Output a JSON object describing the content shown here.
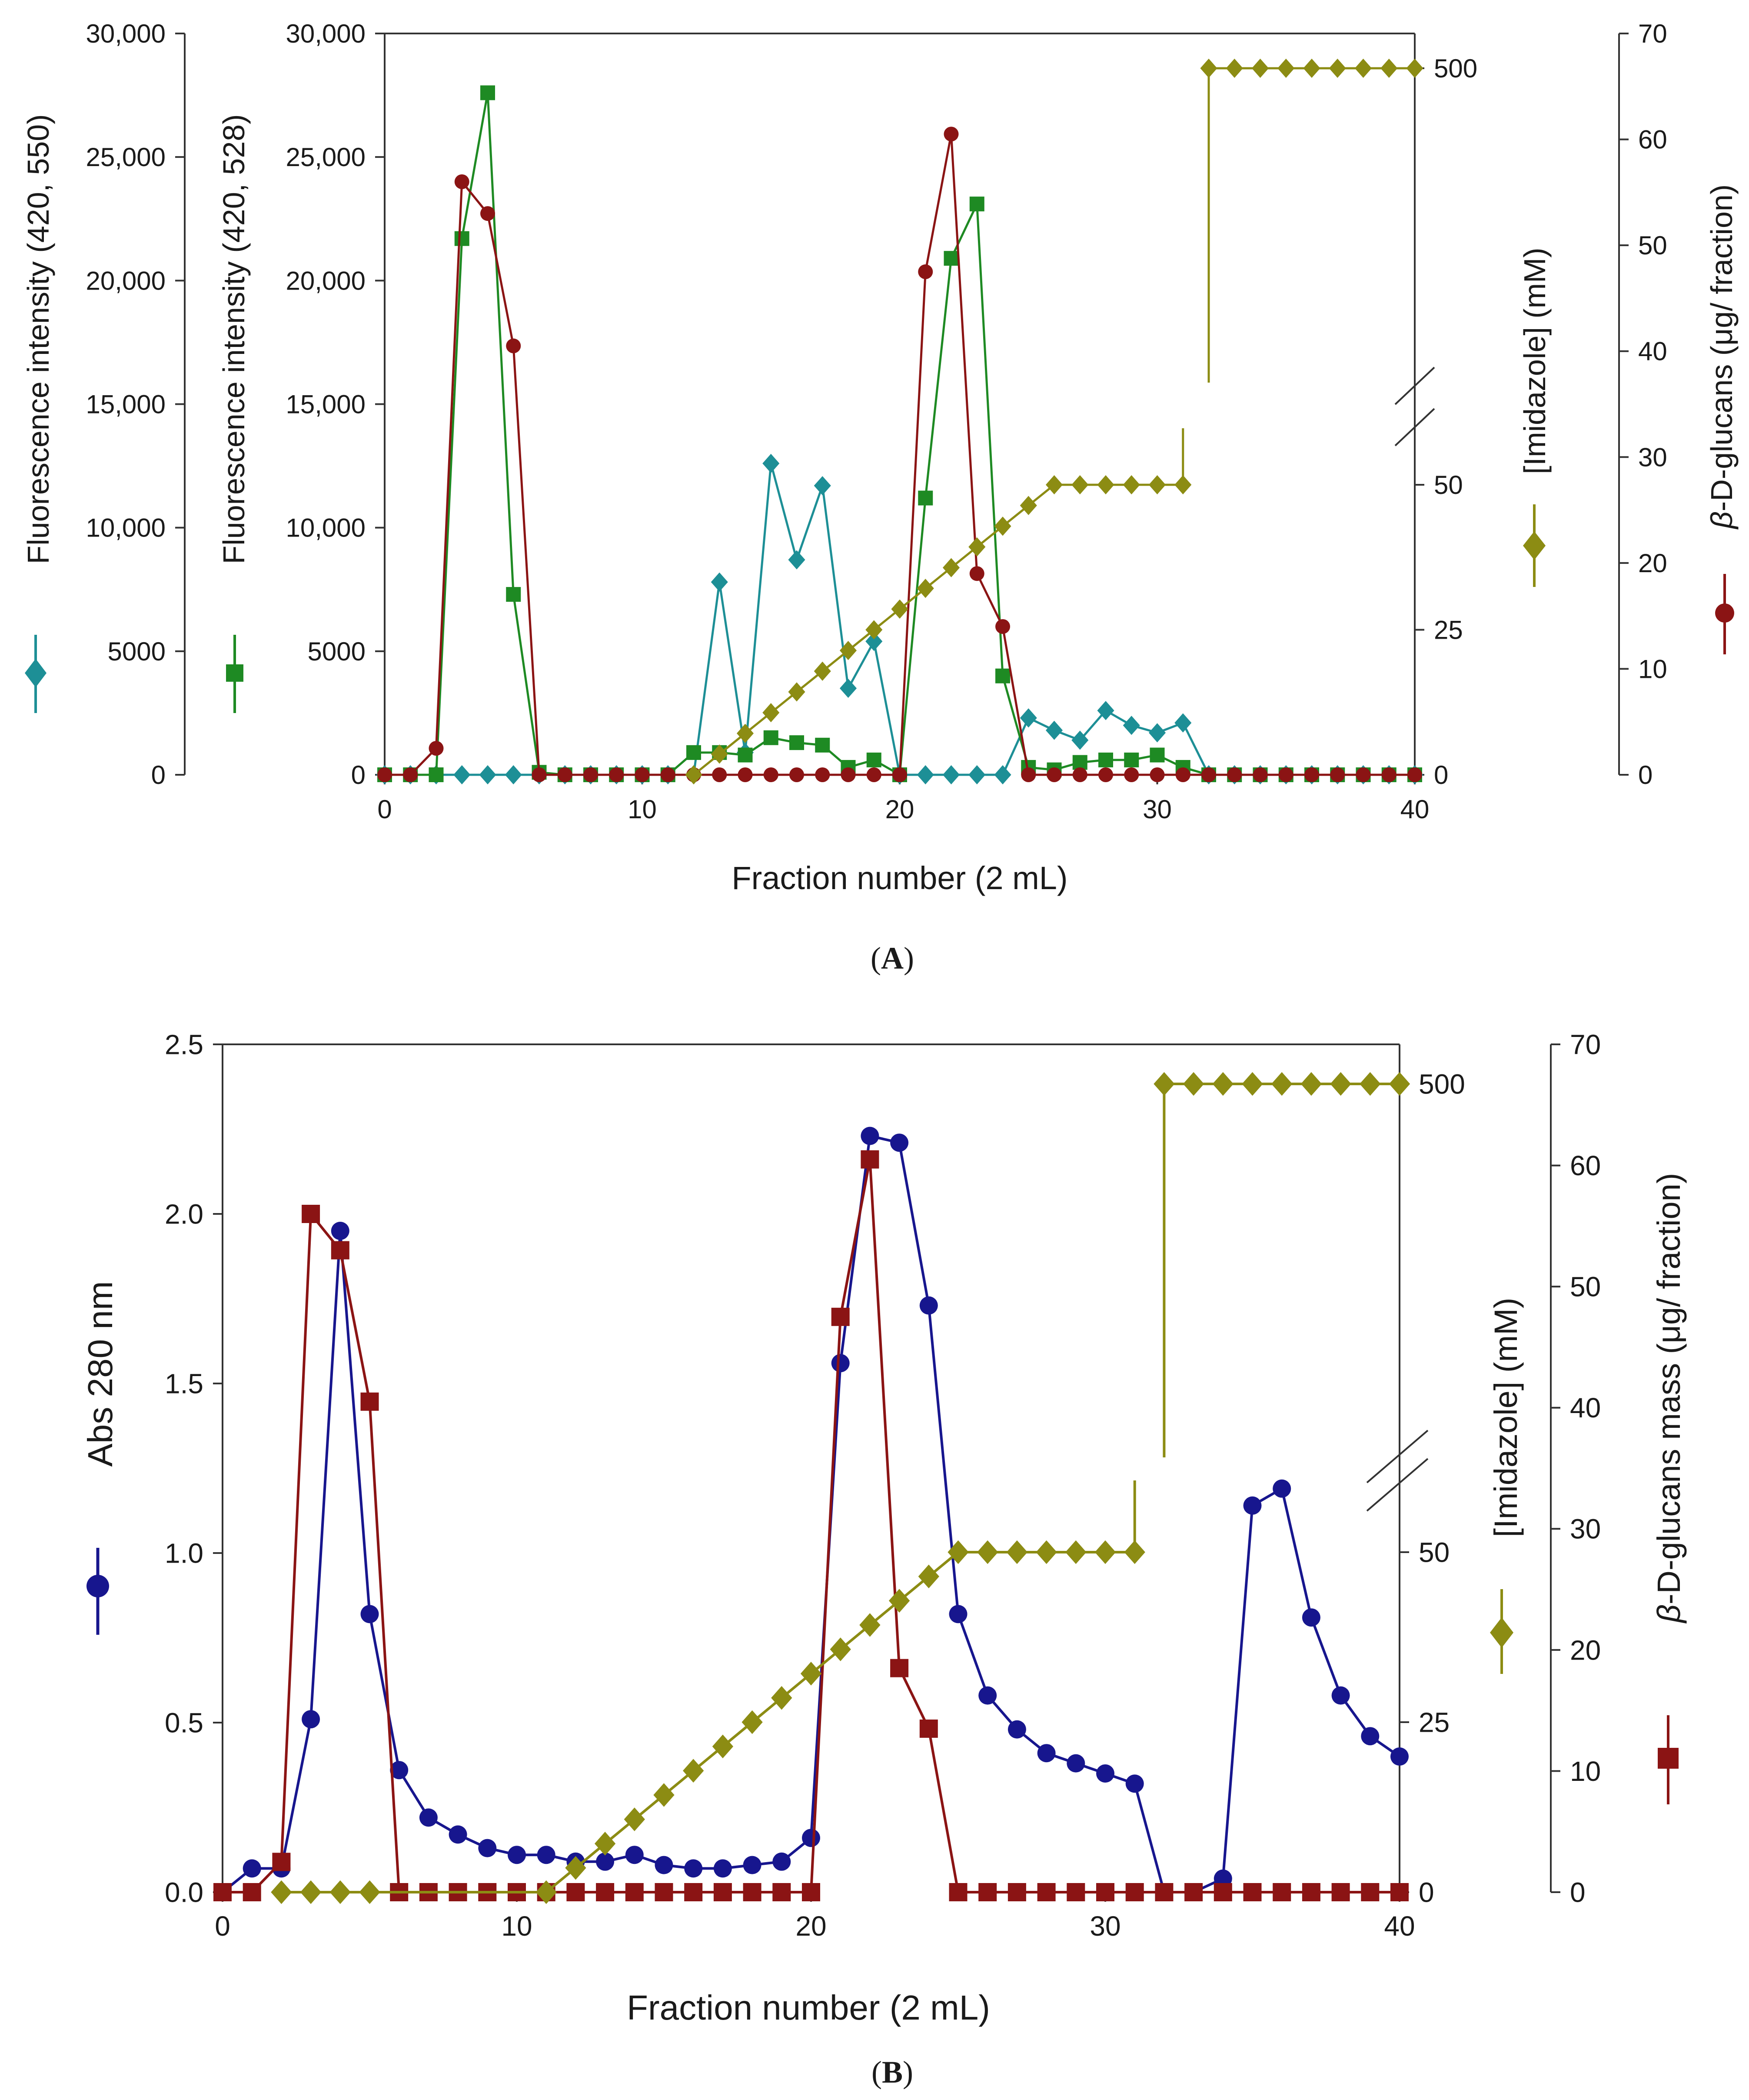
{
  "colors": {
    "teal": "#1d8f96",
    "green": "#1e8a23",
    "darkred": "#8b1414",
    "olive": "#8c8c13",
    "navy": "#17168e",
    "axis": "#333333"
  },
  "chart_data": [
    {
      "panel_label": "A",
      "type": "line",
      "xlabel": "Fraction number (2 mL)",
      "xlim": [
        0,
        40
      ],
      "xticks": [
        0,
        10,
        20,
        30,
        40
      ],
      "axes": {
        "left1": {
          "label": "Fluorescence intensity (420, 550)",
          "ylim": [
            0,
            30000
          ],
          "ticks": [
            "0",
            "5000",
            "10,000",
            "15,000",
            "20,000",
            "25,000",
            "30,000"
          ]
        },
        "left2": {
          "label": "Fluorescence intensity (420, 528)",
          "ylim": [
            0,
            30000
          ],
          "ticks": [
            "0",
            "5000",
            "10,000",
            "15,000",
            "20,000",
            "25,000",
            "30,000"
          ]
        },
        "right1": {
          "label": "[Imidazole] (mM)",
          "broken": true,
          "ticks": [
            "0",
            "25",
            "50",
            "500"
          ]
        },
        "right2": {
          "label": "β-D-glucans (μg/ fraction)",
          "ylim": [
            0,
            70
          ],
          "ticks": [
            "0",
            "10",
            "20",
            "30",
            "40",
            "50",
            "60",
            "70"
          ]
        }
      },
      "series": [
        {
          "name": "Fluorescence intensity (420, 550)",
          "axis": "left1",
          "color": "teal",
          "marker": "diamond",
          "x": [
            0,
            1,
            2,
            3,
            4,
            5,
            6,
            7,
            8,
            9,
            10,
            11,
            12,
            13,
            14,
            15,
            16,
            17,
            18,
            19,
            20,
            21,
            22,
            23,
            24,
            25,
            26,
            27,
            28,
            29,
            30,
            31,
            32,
            33,
            34,
            35,
            36,
            37,
            38,
            39,
            40
          ],
          "values": [
            0,
            0,
            0,
            0,
            0,
            0,
            0,
            0,
            0,
            0,
            0,
            0,
            0,
            7800,
            900,
            12600,
            8700,
            11700,
            3500,
            5400,
            0,
            0,
            0,
            0,
            0,
            2300,
            1800,
            1400,
            2600,
            2000,
            1700,
            2100,
            0,
            0,
            0,
            0,
            0,
            0,
            0,
            0,
            0
          ]
        },
        {
          "name": "Fluorescence intensity (420, 528)",
          "axis": "left2",
          "color": "green",
          "marker": "square",
          "x": [
            0,
            1,
            2,
            3,
            4,
            5,
            6,
            7,
            8,
            9,
            10,
            11,
            12,
            13,
            14,
            15,
            16,
            17,
            18,
            19,
            20,
            21,
            22,
            23,
            24,
            25,
            26,
            27,
            28,
            29,
            30,
            31,
            32,
            33,
            34,
            35,
            36,
            37,
            38,
            39,
            40
          ],
          "values": [
            0,
            0,
            0,
            21700,
            27600,
            7300,
            100,
            0,
            0,
            0,
            0,
            0,
            900,
            900,
            800,
            1500,
            1300,
            1200,
            300,
            600,
            0,
            11200,
            20900,
            23100,
            4000,
            300,
            200,
            500,
            600,
            600,
            800,
            300,
            0,
            0,
            0,
            0,
            0,
            0,
            0,
            0,
            0
          ]
        },
        {
          "name": "β-D-glucans (μg/ fraction)",
          "axis": "right2",
          "color": "darkred",
          "marker": "circle",
          "x": [
            0,
            1,
            2,
            3,
            4,
            5,
            6,
            7,
            8,
            9,
            10,
            11,
            12,
            13,
            14,
            15,
            16,
            17,
            18,
            19,
            20,
            21,
            22,
            23,
            24,
            25,
            26,
            27,
            28,
            29,
            30,
            31,
            32,
            33,
            34,
            35,
            36,
            37,
            38,
            39,
            40
          ],
          "values": [
            0,
            0,
            2.5,
            56,
            53,
            40.5,
            0,
            0,
            0,
            0,
            0,
            0,
            0,
            0,
            0,
            0,
            0,
            0,
            0,
            0,
            0,
            47.5,
            60.5,
            19,
            14,
            0,
            0,
            0,
            0,
            0,
            0,
            0,
            0,
            0,
            0,
            0,
            0,
            0,
            0,
            0,
            0
          ]
        },
        {
          "name": "[Imidazole] (mM)",
          "axis": "right1",
          "color": "olive",
          "marker": "diamond",
          "x": [
            12,
            13,
            14,
            15,
            16,
            17,
            18,
            19,
            20,
            21,
            22,
            23,
            24,
            25,
            26,
            27,
            28,
            29,
            30,
            31,
            32,
            33,
            34,
            35,
            36,
            37,
            38,
            39,
            40
          ],
          "values": [
            0,
            3.57,
            7.14,
            10.71,
            14.29,
            17.86,
            21.43,
            25,
            28.57,
            32.14,
            35.71,
            39.29,
            42.86,
            46.43,
            50,
            50,
            50,
            50,
            50,
            50,
            500,
            500,
            500,
            500,
            500,
            500,
            500,
            500,
            500
          ]
        }
      ]
    },
    {
      "panel_label": "B",
      "type": "line",
      "xlabel": "Fraction number (2 mL)",
      "xlim": [
        0,
        40
      ],
      "xticks": [
        0,
        10,
        20,
        30,
        40
      ],
      "axes": {
        "left": {
          "label": "Abs 280 nm",
          "ylim": [
            0,
            2.5
          ],
          "ticks": [
            "0.0",
            "0.5",
            "1.0",
            "1.5",
            "2.0",
            "2.5"
          ]
        },
        "right1": {
          "label": "[Imidazole] (mM)",
          "broken": true,
          "ticks": [
            "0",
            "25",
            "50",
            "500"
          ]
        },
        "right2": {
          "label": "β-D-glucans mass (μg/ fraction)",
          "ylim": [
            0,
            70
          ],
          "ticks": [
            "0",
            "10",
            "20",
            "30",
            "40",
            "50",
            "60",
            "70"
          ]
        }
      },
      "series": [
        {
          "name": "Abs 280 nm",
          "axis": "left",
          "color": "navy",
          "marker": "circle",
          "x": [
            0,
            1,
            2,
            3,
            4,
            5,
            6,
            7,
            8,
            9,
            10,
            11,
            12,
            13,
            14,
            15,
            16,
            17,
            18,
            19,
            20,
            21,
            22,
            23,
            24,
            25,
            26,
            27,
            28,
            29,
            30,
            31,
            32,
            33,
            34,
            35,
            36,
            37,
            38,
            39,
            40
          ],
          "values": [
            0,
            0.07,
            0.07,
            0.51,
            1.95,
            0.82,
            0.36,
            0.22,
            0.17,
            0.13,
            0.11,
            0.11,
            0.09,
            0.09,
            0.11,
            0.08,
            0.07,
            0.07,
            0.08,
            0.09,
            0.16,
            1.56,
            2.23,
            2.21,
            1.73,
            0.82,
            0.58,
            0.48,
            0.41,
            0.38,
            0.35,
            0.32,
            0,
            0,
            0.04,
            1.14,
            1.19,
            0.81,
            0.58,
            0.46,
            0.4
          ]
        },
        {
          "name": "β-D-glucans mass (μg/ fraction)",
          "axis": "right2",
          "color": "darkred",
          "marker": "square",
          "x": [
            0,
            1,
            2,
            3,
            4,
            5,
            6,
            7,
            8,
            9,
            10,
            11,
            12,
            13,
            14,
            15,
            16,
            17,
            18,
            19,
            20,
            21,
            22,
            23,
            24,
            25,
            26,
            27,
            28,
            29,
            30,
            31,
            32,
            33,
            34,
            35,
            36,
            37,
            38,
            39,
            40
          ],
          "values": [
            0,
            0,
            2.5,
            56,
            53,
            40.5,
            0,
            0,
            0,
            0,
            0,
            0,
            0,
            0,
            0,
            0,
            0,
            0,
            0,
            0,
            0,
            47.5,
            60.5,
            18.5,
            13.5,
            0,
            0,
            0,
            0,
            0,
            0,
            0,
            0,
            0,
            0,
            0,
            0,
            0,
            0,
            0,
            0
          ]
        },
        {
          "name": "[Imidazole] (mM)",
          "axis": "right1",
          "color": "olive",
          "marker": "diamond",
          "x": [
            2,
            3,
            4,
            5,
            11,
            12,
            13,
            14,
            15,
            16,
            17,
            18,
            19,
            20,
            21,
            22,
            23,
            24,
            25,
            26,
            27,
            28,
            29,
            30,
            31,
            32,
            33,
            34,
            35,
            36,
            37,
            38,
            39,
            40
          ],
          "values": [
            0,
            0,
            0,
            0,
            0,
            3.57,
            7.14,
            10.71,
            14.29,
            17.86,
            21.43,
            25,
            28.57,
            32.14,
            35.71,
            39.29,
            42.86,
            46.43,
            50,
            50,
            50,
            50,
            50,
            50,
            50,
            500,
            500,
            500,
            500,
            500,
            500,
            500,
            500,
            500
          ]
        }
      ]
    }
  ]
}
